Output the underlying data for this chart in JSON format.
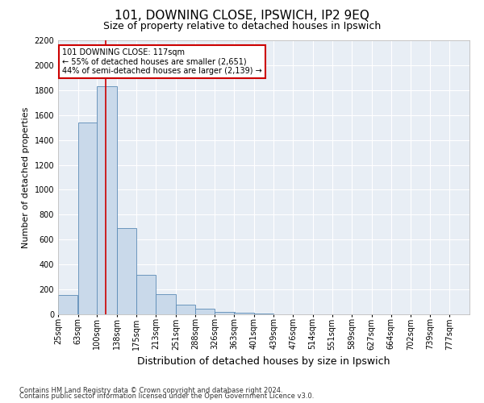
{
  "title": "101, DOWNING CLOSE, IPSWICH, IP2 9EQ",
  "subtitle": "Size of property relative to detached houses in Ipswich",
  "xlabel": "Distribution of detached houses by size in Ipswich",
  "ylabel": "Number of detached properties",
  "footer_line1": "Contains HM Land Registry data © Crown copyright and database right 2024.",
  "footer_line2": "Contains public sector information licensed under the Open Government Licence v3.0.",
  "annotation_line1": "101 DOWNING CLOSE: 117sqm",
  "annotation_line2": "← 55% of detached houses are smaller (2,651)",
  "annotation_line3": "44% of semi-detached houses are larger (2,139) →",
  "bar_color": "#c9d9ea",
  "bar_edge_color": "#5a8ab5",
  "redline_color": "#cc0000",
  "property_size": 117,
  "categories": [
    "25sqm",
    "63sqm",
    "100sqm",
    "138sqm",
    "175sqm",
    "213sqm",
    "251sqm",
    "288sqm",
    "326sqm",
    "363sqm",
    "401sqm",
    "439sqm",
    "476sqm",
    "514sqm",
    "551sqm",
    "589sqm",
    "627sqm",
    "664sqm",
    "702sqm",
    "739sqm",
    "777sqm"
  ],
  "bin_edges": [
    25,
    63,
    100,
    138,
    175,
    213,
    251,
    288,
    326,
    363,
    401,
    439,
    476,
    514,
    551,
    589,
    627,
    664,
    702,
    739,
    777
  ],
  "bin_width": 38,
  "values": [
    155,
    1540,
    1830,
    695,
    315,
    160,
    80,
    45,
    22,
    12,
    5,
    0,
    0,
    0,
    0,
    0,
    0,
    0,
    0,
    0,
    0
  ],
  "ylim": [
    0,
    2200
  ],
  "yticks": [
    0,
    200,
    400,
    600,
    800,
    1000,
    1200,
    1400,
    1600,
    1800,
    2000,
    2200
  ],
  "plot_bg_color": "#e8eef5",
  "grid_color": "#ffffff",
  "title_fontsize": 11,
  "subtitle_fontsize": 9,
  "ylabel_fontsize": 8,
  "xlabel_fontsize": 9,
  "tick_fontsize": 7,
  "annotation_fontsize": 7,
  "footer_fontsize": 6,
  "figsize": [
    6.0,
    5.0
  ],
  "dpi": 100
}
